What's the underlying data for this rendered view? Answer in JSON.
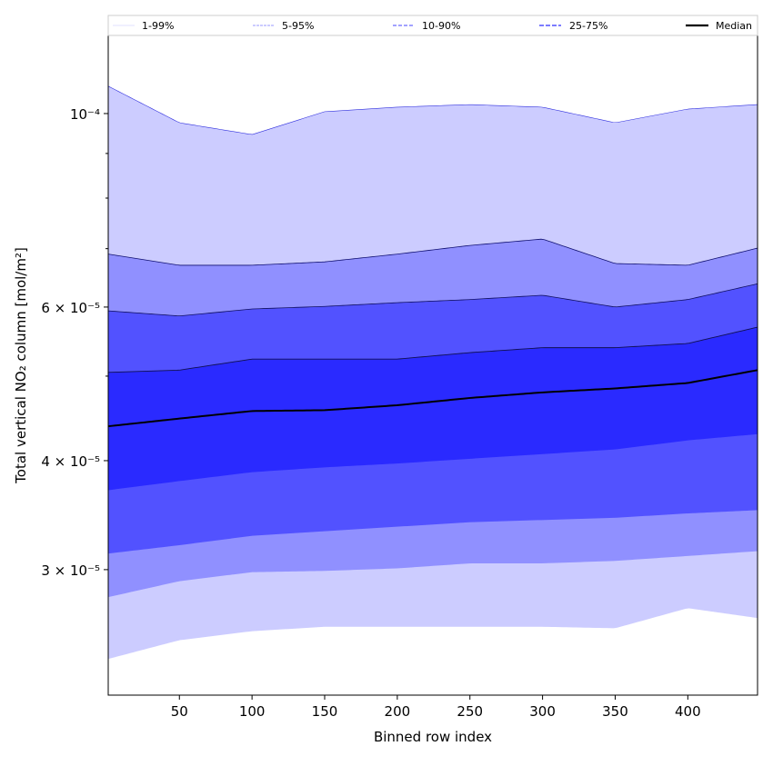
{
  "chart_data": {
    "type": "area",
    "title": "",
    "xlabel": "Binned row index",
    "ylabel": "Total vertical NO₂ column [mol/m²]",
    "yscale": "log",
    "xlim": [
      1,
      448
    ],
    "ylim": [
      2.154e-05,
      0.0001229
    ],
    "x_ticks": [
      50,
      100,
      150,
      200,
      250,
      300,
      350,
      400
    ],
    "x_tick_labels": [
      "50",
      "100",
      "150",
      "200",
      "250",
      "300",
      "350",
      "400"
    ],
    "y_ticks": [
      0.0001,
      6e-05,
      4e-05,
      3e-05
    ],
    "y_tick_labels": [
      "10⁻⁴",
      "6 × 10⁻⁵",
      "4 × 10⁻⁵",
      "3 × 10⁻⁵"
    ],
    "y_minor_ticks": [
      9e-05,
      8e-05,
      7e-05,
      5e-05
    ],
    "legend": {
      "placement": "top (above axes)",
      "entries": [
        "1-99%",
        "5-95%",
        "10-90%",
        "25-75%",
        "Median"
      ]
    },
    "colors": {
      "band_1_99": "#ccccff",
      "band_5_95": "#9090ff",
      "band_10_90": "#5252ff",
      "band_25_75": "#2a2aff",
      "median": "#000000"
    },
    "x": [
      1,
      50,
      100,
      150,
      200,
      250,
      300,
      350,
      400,
      448
    ],
    "series": [
      {
        "name": "p1",
        "values": [
          2.37e-05,
          2.49e-05,
          2.55e-05,
          2.58e-05,
          2.58e-05,
          2.58e-05,
          2.58e-05,
          2.57e-05,
          2.71e-05,
          2.64e-05
        ]
      },
      {
        "name": "p5",
        "values": [
          2.79e-05,
          2.91e-05,
          2.98e-05,
          2.99e-05,
          3.01e-05,
          3.05e-05,
          3.05e-05,
          3.07e-05,
          3.11e-05,
          3.15e-05
        ]
      },
      {
        "name": "p10",
        "values": [
          3.13e-05,
          3.2e-05,
          3.28e-05,
          3.32e-05,
          3.36e-05,
          3.4e-05,
          3.42e-05,
          3.44e-05,
          3.48e-05,
          3.51e-05
        ]
      },
      {
        "name": "p25",
        "values": [
          3.7e-05,
          3.79e-05,
          3.88e-05,
          3.93e-05,
          3.97e-05,
          4.02e-05,
          4.07e-05,
          4.12e-05,
          4.22e-05,
          4.29e-05
        ]
      },
      {
        "name": "Median",
        "values": [
          4.38e-05,
          4.47e-05,
          4.56e-05,
          4.57e-05,
          4.63e-05,
          4.72e-05,
          4.79e-05,
          4.84e-05,
          4.91e-05,
          5.08e-05
        ]
      },
      {
        "name": "p75",
        "values": [
          5.05e-05,
          5.08e-05,
          5.23e-05,
          5.23e-05,
          5.23e-05,
          5.32e-05,
          5.39e-05,
          5.39e-05,
          5.45e-05,
          5.69e-05
        ]
      },
      {
        "name": "p90",
        "values": [
          5.94e-05,
          5.86e-05,
          5.97e-05,
          6.01e-05,
          6.07e-05,
          6.12e-05,
          6.19e-05,
          6e-05,
          6.12e-05,
          6.38e-05
        ]
      },
      {
        "name": "p95",
        "values": [
          6.9e-05,
          6.7e-05,
          6.7e-05,
          6.76e-05,
          6.9e-05,
          7.06e-05,
          7.18e-05,
          6.73e-05,
          6.7e-05,
          7.01e-05
        ]
      },
      {
        "name": "p99",
        "values": [
          0.0001075,
          9.76e-05,
          9.46e-05,
          0.0001005,
          0.0001017,
          0.0001024,
          0.0001017,
          9.76e-05,
          0.0001012,
          0.0001024
        ]
      }
    ]
  }
}
